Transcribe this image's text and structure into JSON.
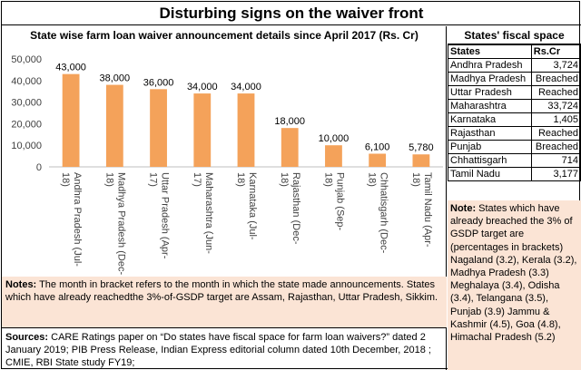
{
  "title": "Disturbing signs on the waiver front",
  "chart_data": {
    "type": "bar",
    "title": "State wise farm loan waiver announcement details since April 2017 (Rs. Cr)",
    "categories": [
      "Andhra Pradesh (Jul-18)",
      "Madhya Pradesh (Dec-18)",
      "Uttar Pradesh (Apr-17)",
      "Maharashtra (Jun-17)",
      "Karnataka (Jul-18)",
      "Rajasthan (Dec-18)",
      "Punjab (Sep-18)",
      "Chhatisgarh (Dec-18)",
      "Tamil Nadu (Apr-18)"
    ],
    "values": [
      43000,
      38000,
      36000,
      34000,
      34000,
      18000,
      10000,
      6100,
      5780
    ],
    "data_labels": [
      "43,000",
      "38,000",
      "36,000",
      "34,000",
      "34,000",
      "18,000",
      "10,000",
      "6,100",
      "5,780"
    ],
    "ylim": [
      0,
      50000
    ],
    "yticks": [
      "0",
      "10,000",
      "20,000",
      "30,000",
      "40,000",
      "50,000"
    ],
    "bar_color": "#f4a25a",
    "grid": false,
    "legend": "none"
  },
  "notes": {
    "label": "Notes:",
    "text": " The month in bracket refers to the month in which the state made announcements. States which have already reachedthe 3%-of-GSDP target are Assam, Rajasthan, Uttar Pradesh, Sikkim."
  },
  "sources": {
    "label": "Sources:",
    "text": " CARE Ratings paper on “Do states have fiscal space for farm loan waivers?” dated 2 January 2019;  PIB Press Release, Indian Express editorial column dated 10th December, 2018 ; CMIE, RBI State study FY19;"
  },
  "fiscal": {
    "title": "States' fiscal space",
    "headers": [
      "States",
      "Rs.Cr"
    ],
    "rows": [
      [
        "Andhra Pradesh",
        "3,724"
      ],
      [
        "Madhya Pradesh",
        "Breached"
      ],
      [
        "Uttar Pradesh",
        "Reached"
      ],
      [
        "Maharashtra",
        "33,724"
      ],
      [
        "Karnataka",
        "1,405"
      ],
      [
        "Rajasthan",
        "Reached"
      ],
      [
        "Punjab",
        "Breached"
      ],
      [
        "Chhattisgarh",
        "714"
      ],
      [
        "Tamil Nadu",
        "3,177"
      ]
    ]
  },
  "side_note": {
    "label": "Note:",
    "text": " States which have already breached the 3% of GSDP target are (percentages in brackets) Nagaland (3.2), Kerala (3.2), Madhya Pradesh (3.3) Meghalaya (3.4), Odisha (3.4), Telangana (3.5), Punjab (3.9) Jammu & Kashmir (4.5), Goa (4.8), Himachal Pradesh (5.2)"
  }
}
